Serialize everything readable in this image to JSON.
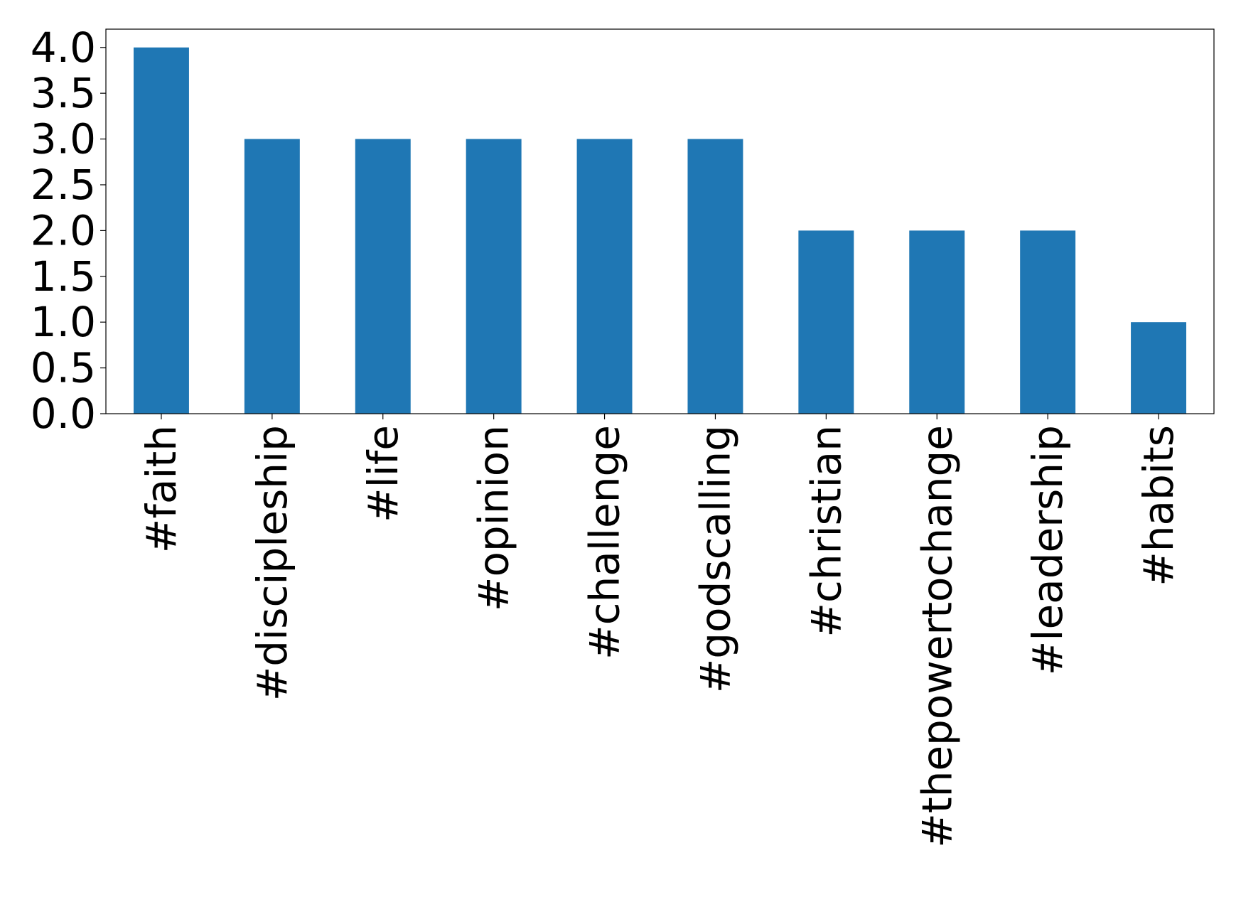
{
  "chart_data": {
    "type": "bar",
    "categories": [
      "#faith",
      "#discipleship",
      "#life",
      "#opinion",
      "#challenge",
      "#godscalling",
      "#christian",
      "#thepowertochange",
      "#leadership",
      "#habits"
    ],
    "values": [
      4,
      3,
      3,
      3,
      3,
      3,
      2,
      2,
      2,
      1
    ],
    "color": "#1f77b4",
    "ylim": [
      0,
      4.2
    ],
    "yticks": [
      {
        "value": 0,
        "label": "0.0"
      },
      0.5,
      {
        "value": 1,
        "label": "1.0"
      },
      1.5,
      {
        "value": 2,
        "label": "2.0"
      },
      2.5,
      {
        "value": 3,
        "label": "3.0"
      },
      3.5,
      {
        "value": 4,
        "label": "4.0"
      }
    ],
    "grid": false
  }
}
